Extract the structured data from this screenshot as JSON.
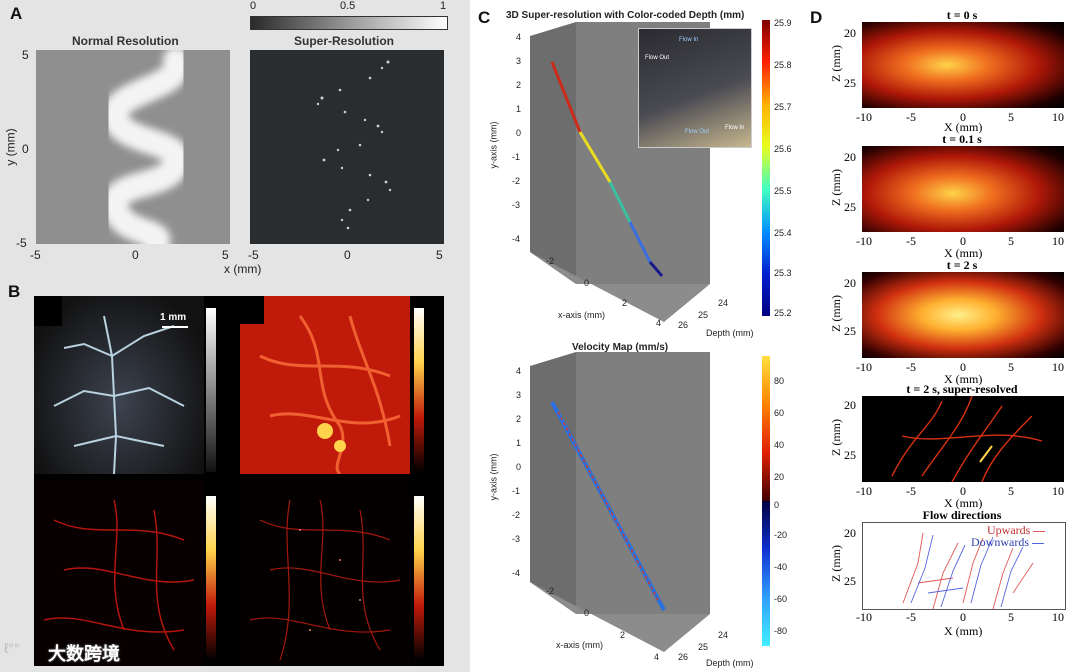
{
  "panels": {
    "A": {
      "letter": "A",
      "left_title": "Normal Resolution",
      "right_title": "Super-Resolution",
      "colorbar_ticks": [
        "0",
        "0.5",
        "1"
      ],
      "y_label": "y (mm)",
      "x_label": "x (mm)",
      "y_ticks": [
        "5",
        "0",
        "-5"
      ],
      "x_ticks_left": [
        "-5",
        "0",
        "5"
      ],
      "x_ticks_right": [
        "-5",
        "0",
        "5"
      ]
    },
    "B": {
      "letter": "B",
      "scale_label": "1 mm"
    },
    "C": {
      "letter": "C",
      "top_title": "3D Super-resolution with Color-coded Depth (mm)",
      "bottom_title": "Velocity Map (mm/s)",
      "y_axis_label": "y-axis (mm)",
      "x_axis_label": "x-axis (mm)",
      "depth_label": "Depth (mm)",
      "y_ticks": [
        "4",
        "3",
        "2",
        "1",
        "0",
        "-1",
        "-2",
        "-3",
        "-4"
      ],
      "x_ticks": [
        "-2",
        "0",
        "2",
        "4"
      ],
      "depth_ticks": [
        "24",
        "25",
        "26"
      ],
      "top_colorbar_ticks": [
        "25.9",
        "25.8",
        "25.7",
        "25.6",
        "25.5",
        "25.4",
        "25.3",
        "25.2"
      ],
      "bottom_colorbar_ticks": [
        "80",
        "60",
        "40",
        "20",
        "0",
        "-20",
        "-40",
        "-60",
        "-80"
      ],
      "inset_labels": [
        "Flow In",
        "Flow Out",
        "Flow Out",
        "Flow In"
      ]
    },
    "D": {
      "letter": "D",
      "titles": [
        "t = 0 s",
        "t = 0.1 s",
        "t = 2 s",
        "t = 2 s, super-resolved",
        "Flow directions"
      ],
      "z_label": "Z (mm)",
      "x_label": "X (mm)",
      "z_ticks": [
        "20",
        "25"
      ],
      "x_ticks": [
        "-10",
        "-5",
        "0",
        "5",
        "10"
      ],
      "legend": [
        "Upwards",
        "Downwards"
      ]
    }
  },
  "watermark": "大数跨境",
  "colors": {
    "hot_red": "#c0150a",
    "hot_yellow": "#ffd34a",
    "upwards": "#e05555",
    "downwards": "#5566dd"
  }
}
